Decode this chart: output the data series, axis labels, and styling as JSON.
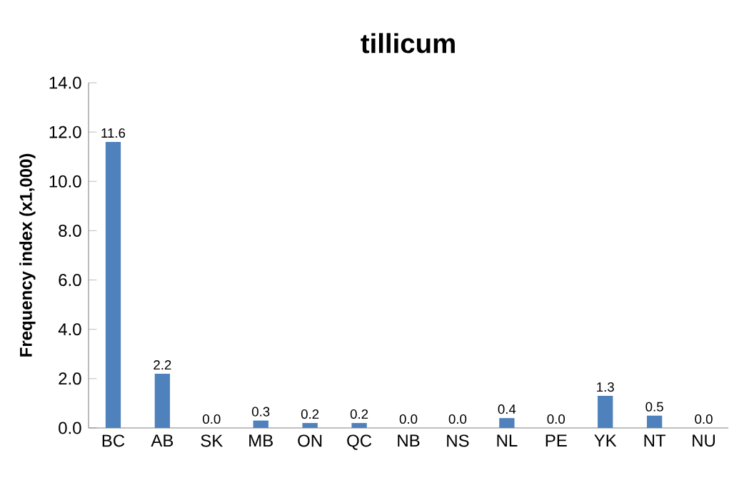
{
  "chart_data": {
    "type": "bar",
    "title": "tillicum",
    "ylabel": "Frequency index (x1,000)",
    "categories": [
      "BC",
      "AB",
      "SK",
      "MB",
      "ON",
      "QC",
      "NB",
      "NS",
      "NL",
      "PE",
      "YK",
      "NT",
      "NU"
    ],
    "values": [
      11.6,
      2.2,
      0.0,
      0.3,
      0.2,
      0.2,
      0.0,
      0.0,
      0.4,
      0.0,
      1.3,
      0.5,
      0.0
    ],
    "value_labels": [
      "11.6",
      "2.2",
      "0.0",
      "0.3",
      "0.2",
      "0.2",
      "0.0",
      "0.0",
      "0.4",
      "0.0",
      "1.3",
      "0.5",
      "0.0"
    ],
    "color": "#4f81bd",
    "ylim": [
      0,
      14
    ],
    "yticks": [
      {
        "value": 0,
        "label": "0.0"
      },
      {
        "value": 2,
        "label": "2.0"
      },
      {
        "value": 4,
        "label": "4.0"
      },
      {
        "value": 6,
        "label": "6.0"
      },
      {
        "value": 8,
        "label": "8.0"
      },
      {
        "value": 10,
        "label": "10.0"
      },
      {
        "value": 12,
        "label": "12.0"
      },
      {
        "value": 14,
        "label": "14.0"
      }
    ]
  }
}
